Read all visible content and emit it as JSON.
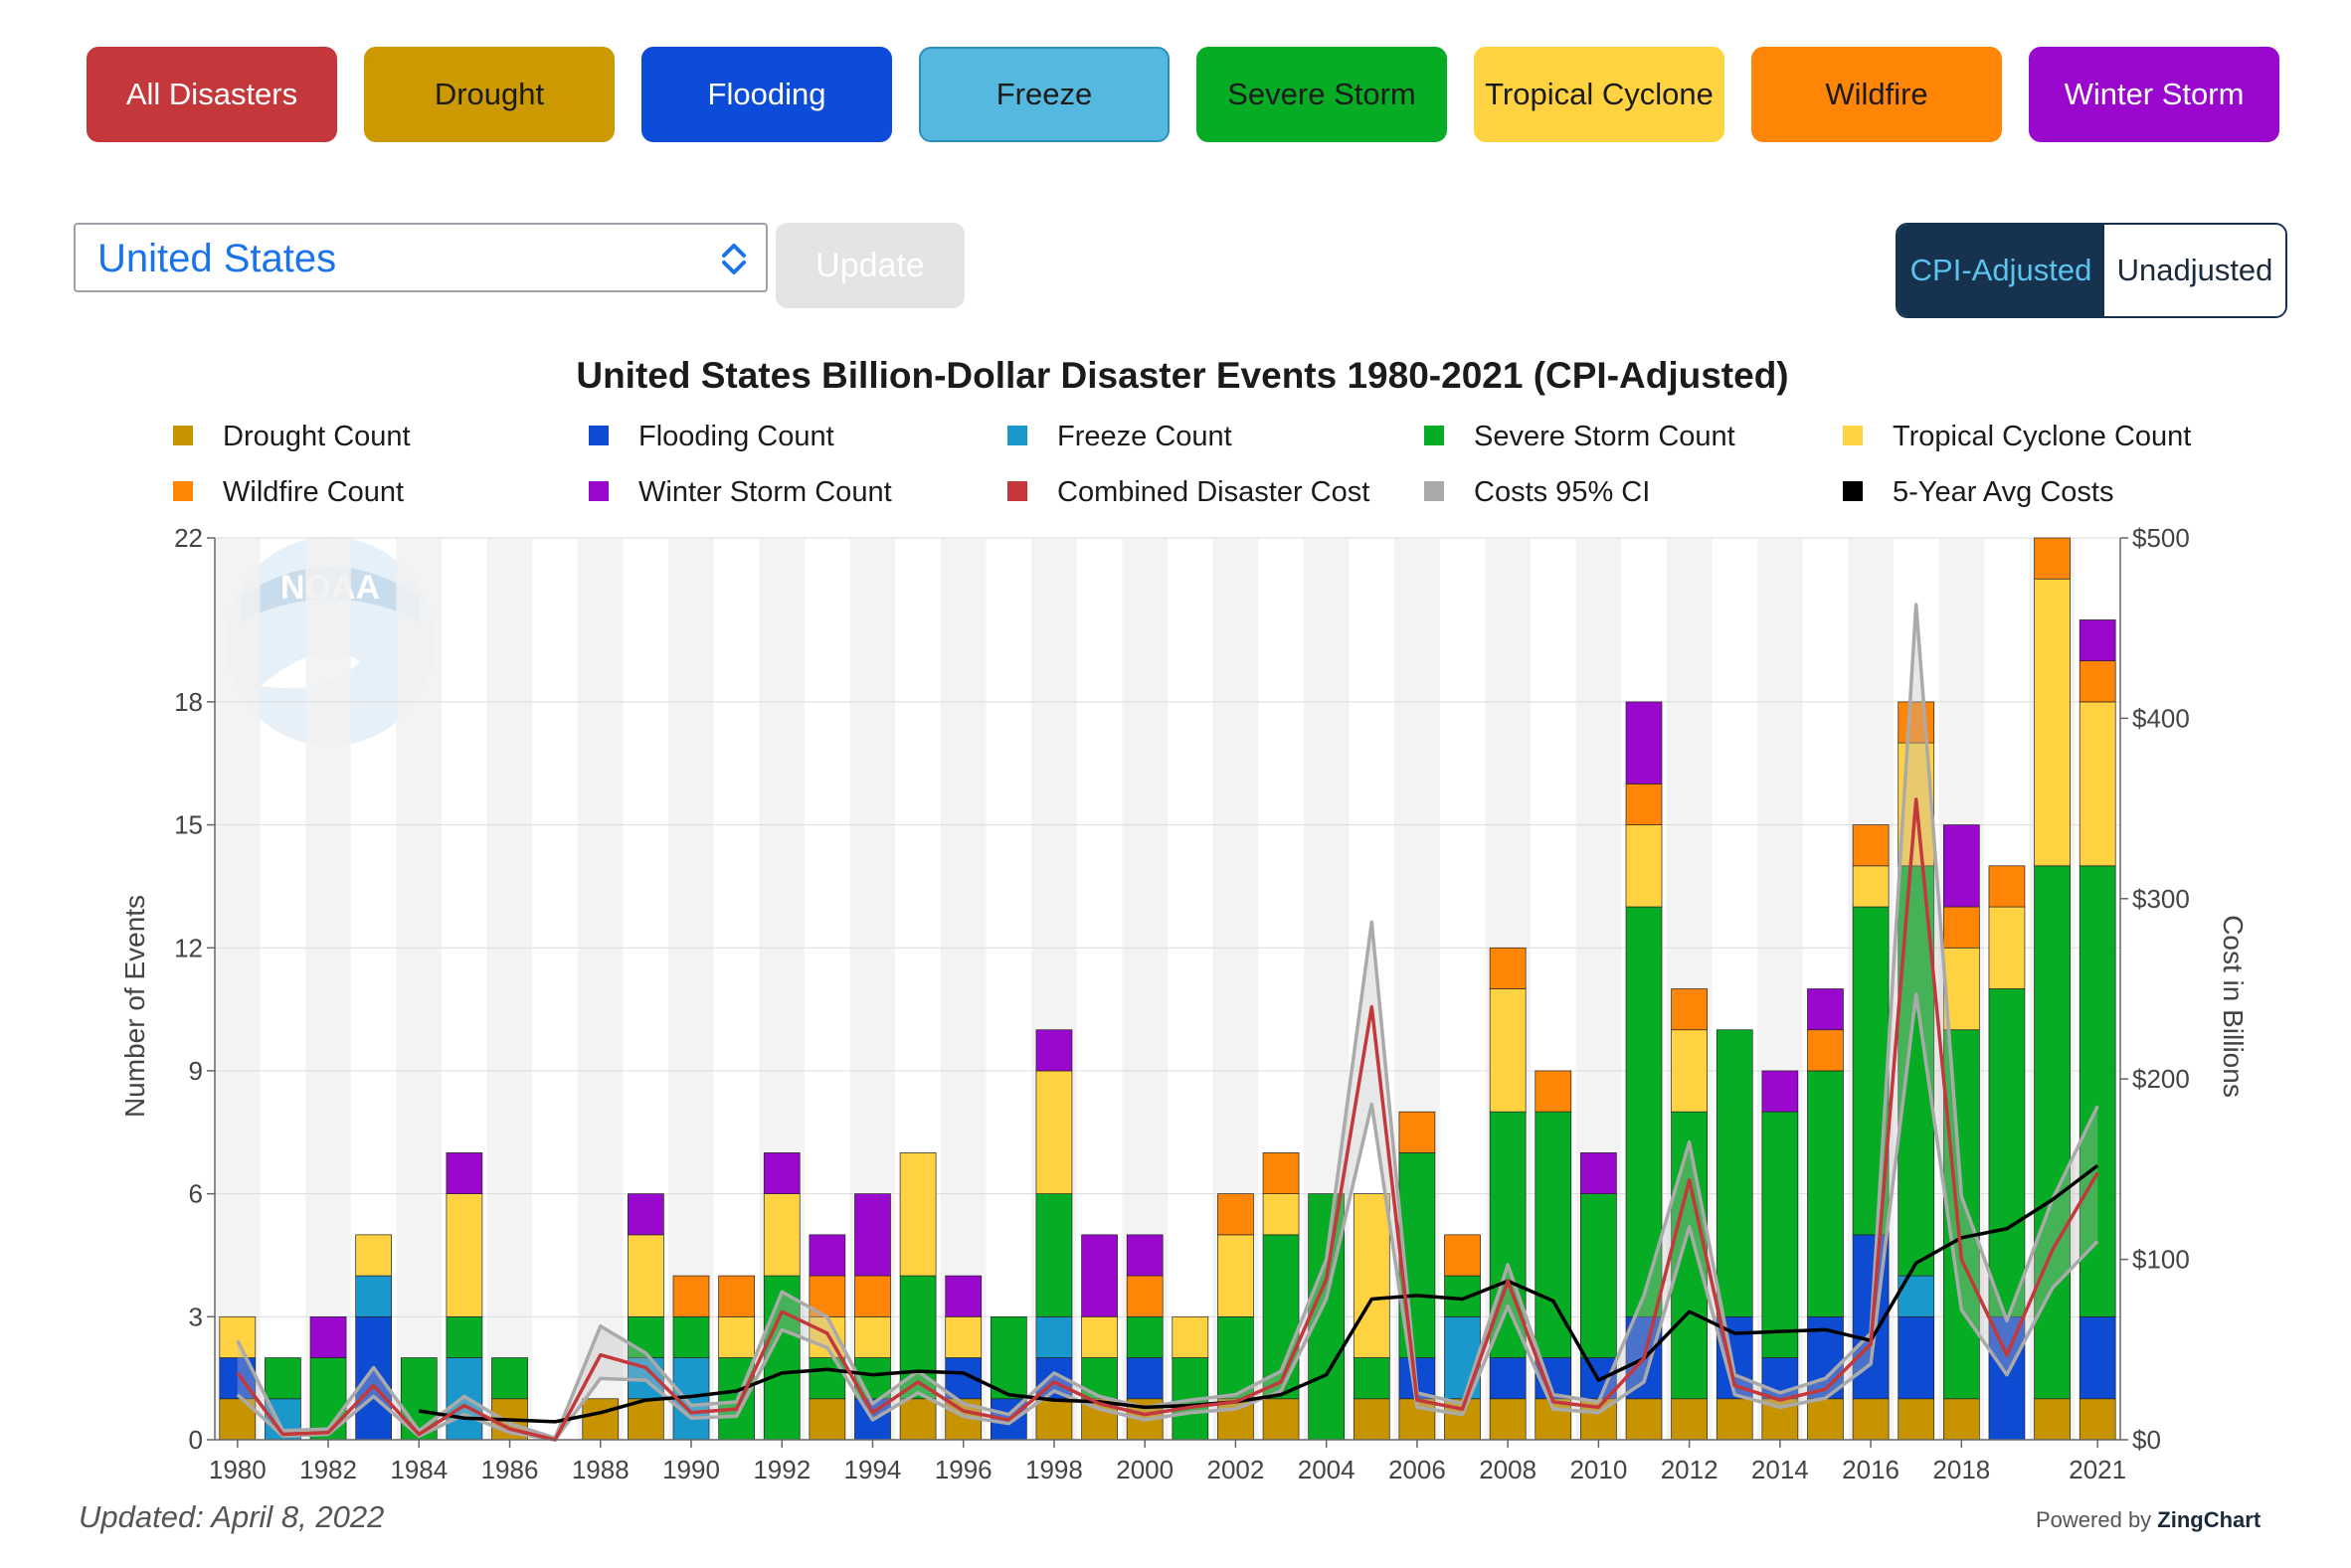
{
  "buttons": [
    {
      "label": "All Disasters",
      "bg": "#c4373a",
      "fg": "#ffffff",
      "border": "#c4373a"
    },
    {
      "label": "Drought",
      "bg": "#cc9900",
      "fg": "#1b1b1b",
      "border": "#cc9900"
    },
    {
      "label": "Flooding",
      "bg": "#0c4cd8",
      "fg": "#ffffff",
      "border": "#0c4cd8"
    },
    {
      "label": "Freeze",
      "bg": "#55b8de",
      "fg": "#1b1b1b",
      "border": "#2a8fba"
    },
    {
      "label": "Severe Storm",
      "bg": "#06ac23",
      "fg": "#1b1b1b",
      "border": "#06ac23"
    },
    {
      "label": "Tropical Cyclone",
      "bg": "#ffd242",
      "fg": "#1b1b1b",
      "border": "#ffd242"
    },
    {
      "label": "Wildfire",
      "bg": "#ff8506",
      "fg": "#1b1b1b",
      "border": "#ff8506"
    },
    {
      "label": "Winter Storm",
      "bg": "#9908cc",
      "fg": "#ffffff",
      "border": "#9908cc"
    }
  ],
  "region": {
    "selected": "United States"
  },
  "update_label": "Update",
  "toggle": {
    "adjusted": "CPI-Adjusted",
    "unadjusted": "Unadjusted"
  },
  "updated": "Updated: April 8, 2022",
  "powered": {
    "prefix": "Powered by ",
    "brand": "ZingChart"
  },
  "colors": {
    "drought": "#c79400",
    "flooding": "#0e4bd3",
    "freeze": "#1a98cc",
    "severe": "#06ac23",
    "tropical": "#ffd242",
    "wildfire": "#ff8506",
    "winter": "#9908cc",
    "cost": "#c4373a",
    "ci": "#aaaaaa",
    "avg": "#000000"
  },
  "chart_data": {
    "type": "bar",
    "title": "United States Billion-Dollar Disaster Events 1980-2021 (CPI-Adjusted)",
    "ylabel": "Number of Events",
    "y2label": "Cost in Billions",
    "ylim": [
      0,
      22
    ],
    "y2lim": [
      0,
      500
    ],
    "y_ticks": [
      0,
      3,
      6,
      9,
      12,
      15,
      18,
      22
    ],
    "y2_ticks": [
      {
        "v": 0,
        "label": "$0"
      },
      {
        "v": 100,
        "label": "$100"
      },
      {
        "v": 200,
        "label": "$200"
      },
      {
        "v": 300,
        "label": "$300"
      },
      {
        "v": 400,
        "label": "$400"
      },
      {
        "v": 500,
        "label": "$500"
      }
    ],
    "x_tick_labels": [
      "1980",
      "1982",
      "1984",
      "1986",
      "1988",
      "1990",
      "1992",
      "1994",
      "1996",
      "1998",
      "2000",
      "2002",
      "2004",
      "2006",
      "2008",
      "2010",
      "2012",
      "2014",
      "2016",
      "2018",
      "2021"
    ],
    "legend_position": "top",
    "grid": true,
    "stacked": true,
    "years": [
      1980,
      1981,
      1982,
      1983,
      1984,
      1985,
      1986,
      1987,
      1988,
      1989,
      1990,
      1991,
      1992,
      1993,
      1994,
      1995,
      1996,
      1997,
      1998,
      1999,
      2000,
      2001,
      2002,
      2003,
      2004,
      2005,
      2006,
      2007,
      2008,
      2009,
      2010,
      2011,
      2012,
      2013,
      2014,
      2015,
      2016,
      2017,
      2018,
      2019,
      2020,
      2021
    ],
    "legend": [
      "Drought Count",
      "Flooding Count",
      "Freeze Count",
      "Severe Storm Count",
      "Tropical Cyclone Count",
      "Wildfire Count",
      "Winter Storm Count",
      "Combined Disaster Cost",
      "Costs 95% CI",
      "5-Year Avg Costs"
    ],
    "series": [
      {
        "name": "Drought Count",
        "key": "drought",
        "values": [
          1,
          0,
          0,
          0,
          0,
          0,
          1,
          0,
          1,
          1,
          0,
          0,
          0,
          1,
          0,
          1,
          1,
          0,
          1,
          1,
          1,
          0,
          1,
          1,
          0,
          1,
          1,
          1,
          1,
          1,
          1,
          1,
          1,
          1,
          1,
          1,
          1,
          1,
          1,
          0,
          1,
          1
        ]
      },
      {
        "name": "Flooding Count",
        "key": "flooding",
        "values": [
          1,
          0,
          0,
          3,
          0,
          0,
          0,
          0,
          0,
          0,
          0,
          0,
          0,
          0,
          1,
          0,
          1,
          1,
          1,
          0,
          1,
          0,
          0,
          0,
          0,
          0,
          1,
          0,
          1,
          1,
          1,
          2,
          0,
          2,
          1,
          2,
          4,
          2,
          0,
          3,
          0,
          2
        ]
      },
      {
        "name": "Freeze Count",
        "key": "freeze",
        "values": [
          0,
          1,
          0,
          1,
          0,
          2,
          0,
          0,
          0,
          1,
          2,
          0,
          0,
          0,
          0,
          0,
          0,
          0,
          1,
          0,
          0,
          0,
          0,
          0,
          0,
          0,
          0,
          2,
          0,
          0,
          0,
          0,
          0,
          0,
          0,
          0,
          0,
          1,
          0,
          0,
          0,
          0
        ]
      },
      {
        "name": "Severe Storm Count",
        "key": "severe",
        "values": [
          0,
          1,
          2,
          0,
          2,
          1,
          1,
          0,
          0,
          1,
          1,
          2,
          4,
          1,
          1,
          3,
          0,
          2,
          3,
          1,
          1,
          2,
          2,
          4,
          6,
          1,
          5,
          1,
          6,
          6,
          4,
          10,
          7,
          7,
          6,
          6,
          8,
          10,
          9,
          8,
          13,
          11
        ]
      },
      {
        "name": "Tropical Cyclone Count",
        "key": "tropical",
        "values": [
          1,
          0,
          0,
          1,
          0,
          3,
          0,
          0,
          0,
          2,
          0,
          1,
          2,
          1,
          1,
          3,
          1,
          0,
          3,
          1,
          0,
          1,
          2,
          1,
          0,
          4,
          0,
          0,
          3,
          0,
          0,
          2,
          2,
          0,
          0,
          0,
          1,
          3,
          2,
          2,
          7,
          4
        ]
      },
      {
        "name": "Wildfire Count",
        "key": "wildfire",
        "values": [
          0,
          0,
          0,
          0,
          0,
          0,
          0,
          0,
          0,
          0,
          1,
          1,
          0,
          1,
          1,
          0,
          0,
          0,
          0,
          0,
          1,
          0,
          1,
          1,
          0,
          0,
          1,
          1,
          1,
          1,
          0,
          1,
          1,
          0,
          0,
          1,
          1,
          1,
          1,
          1,
          1,
          1
        ]
      },
      {
        "name": "Winter Storm Count",
        "key": "winter",
        "values": [
          0,
          0,
          1,
          0,
          0,
          1,
          0,
          0,
          0,
          1,
          0,
          0,
          1,
          1,
          2,
          0,
          1,
          0,
          1,
          2,
          1,
          0,
          0,
          0,
          0,
          0,
          0,
          0,
          0,
          0,
          1,
          2,
          0,
          0,
          1,
          1,
          0,
          0,
          2,
          0,
          0,
          1
        ]
      },
      {
        "name": "Combined Disaster Cost",
        "key": "cost",
        "axis": "right",
        "values": [
          37,
          3,
          4,
          30,
          3,
          19,
          6,
          0,
          47,
          40,
          15,
          17,
          71,
          59,
          15,
          32,
          16,
          11,
          32,
          20,
          14,
          18,
          21,
          32,
          89,
          240,
          22,
          17,
          88,
          21,
          18,
          45,
          144,
          30,
          22,
          28,
          53,
          355,
          100,
          47,
          105,
          148
        ]
      },
      {
        "name": "Costs 95% CI upper",
        "key": "ci",
        "axis": "right",
        "values": [
          55,
          5,
          6,
          40,
          5,
          24,
          9,
          1,
          63,
          48,
          19,
          21,
          82,
          68,
          20,
          38,
          20,
          14,
          37,
          24,
          18,
          22,
          25,
          38,
          100,
          287,
          26,
          20,
          97,
          25,
          21,
          80,
          165,
          36,
          26,
          34,
          59,
          463,
          135,
          66,
          133,
          185
        ]
      },
      {
        "name": "Costs 95% CI lower",
        "key": "ci",
        "axis": "right",
        "values": [
          25,
          2,
          3,
          24,
          2,
          14,
          4,
          0,
          34,
          33,
          12,
          13,
          61,
          51,
          11,
          26,
          13,
          9,
          27,
          17,
          11,
          15,
          17,
          27,
          78,
          186,
          18,
          14,
          74,
          17,
          15,
          32,
          118,
          25,
          18,
          23,
          42,
          247,
          72,
          36,
          84,
          110
        ]
      },
      {
        "name": "5-Year Avg Costs",
        "key": "avg",
        "axis": "right",
        "start_index": 4,
        "values": [
          null,
          null,
          null,
          null,
          16,
          12,
          11,
          10,
          15,
          22,
          24,
          27,
          37,
          39,
          36,
          38,
          37,
          25,
          22,
          21,
          18,
          19,
          21,
          25,
          36,
          78,
          80,
          78,
          88,
          77,
          33,
          45,
          71,
          59,
          60,
          61,
          55,
          98,
          112,
          117,
          133,
          152
        ]
      }
    ]
  }
}
